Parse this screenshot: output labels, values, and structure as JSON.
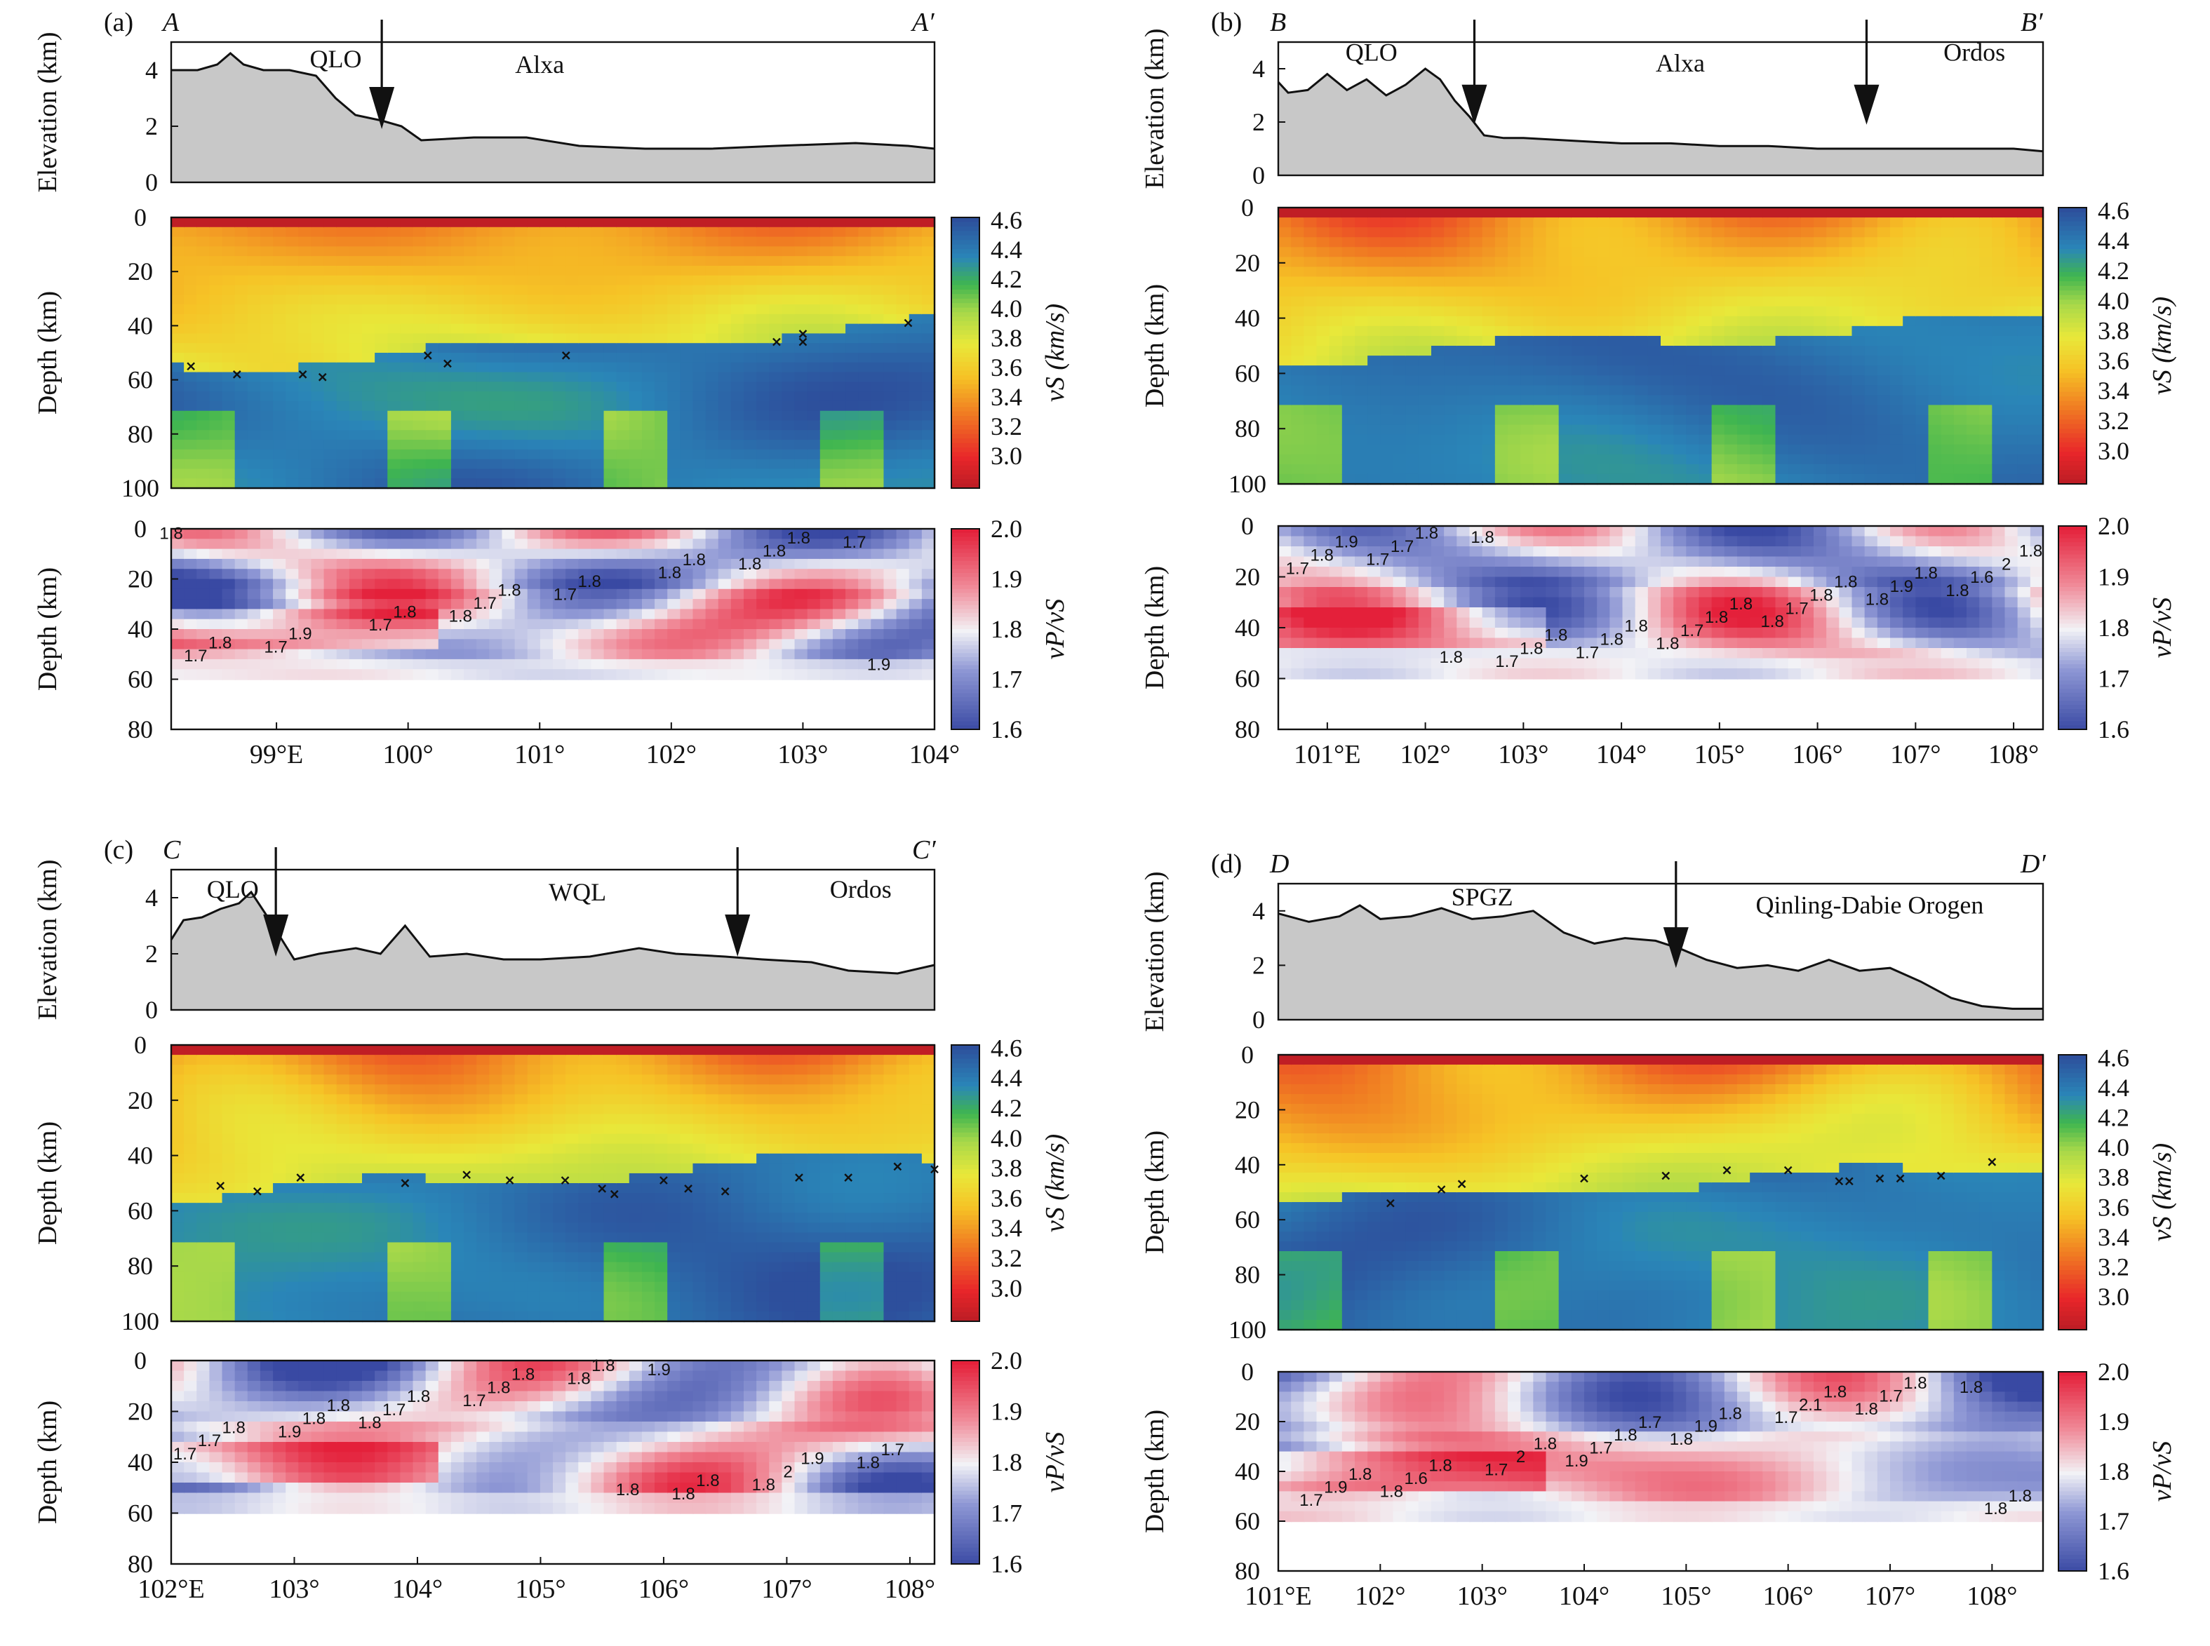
{
  "figure": {
    "panels": [
      {
        "tag": "(a)",
        "start": "A",
        "end": "A′",
        "elev_ylabel": "Elevation (km)",
        "depth_ylabel": "Depth (km)",
        "elev_ticks": [
          "0",
          "2",
          "4"
        ],
        "vs_ticks": [
          "0",
          "20",
          "40",
          "60",
          "80",
          "100"
        ],
        "vpvs_ticks": [
          "0",
          "20",
          "40",
          "60",
          "80"
        ],
        "x_ticks": [
          "99°E",
          "100°",
          "101°",
          "102°",
          "103°",
          "104°"
        ],
        "region_labels": [
          "QLO",
          "Alxa"
        ],
        "vs_cbar_label": "vS (km/s)",
        "vpvs_cbar_label": "vP/vS",
        "vs_cbar_ticks": [
          "4.6",
          "4.4",
          "4.2",
          "4.0",
          "3.8",
          "3.6",
          "3.4",
          "3.2",
          "3.0"
        ],
        "vpvs_cbar_ticks": [
          "2.0",
          "1.9",
          "1.8",
          "1.7",
          "1.6"
        ],
        "contour_labels": [
          "1.8",
          "1.8",
          "1.8",
          "1.7",
          "1.7",
          "1.7",
          "1.7",
          "1.8",
          "1.7",
          "1.7",
          "1.8",
          "1.9",
          "1.8",
          "1.9",
          "1.8",
          "1.8",
          "1.8",
          "1.8",
          "1.8"
        ]
      },
      {
        "tag": "(b)",
        "start": "B",
        "end": "B′",
        "elev_ylabel": "Elevation (km)",
        "depth_ylabel": "Depth (km)",
        "elev_ticks": [
          "0",
          "2",
          "4"
        ],
        "vs_ticks": [
          "0",
          "20",
          "40",
          "60",
          "80",
          "100"
        ],
        "vpvs_ticks": [
          "0",
          "20",
          "40",
          "60",
          "80"
        ],
        "x_ticks": [
          "101°E",
          "102°",
          "103°",
          "104°",
          "105°",
          "106°",
          "107°",
          "108°"
        ],
        "region_labels": [
          "QLO",
          "Alxa",
          "Ordos"
        ],
        "vs_cbar_label": "vS (km/s)",
        "vpvs_cbar_label": "vP/vS",
        "vs_cbar_ticks": [
          "4.6",
          "4.4",
          "4.2",
          "4.0",
          "3.8",
          "3.6",
          "3.4",
          "3.2",
          "3.0"
        ],
        "vpvs_cbar_ticks": [
          "2.0",
          "1.9",
          "1.8",
          "1.7",
          "1.6"
        ],
        "contour_labels": [
          "1.7",
          "1.8",
          "1.8",
          "1.8",
          "1.8",
          "1.7",
          "1.7",
          "1.8",
          "1.7",
          "1.7",
          "1.6",
          "1.7",
          "1.7",
          "1.8",
          "1.8",
          "1.9",
          "1.8",
          "1.8",
          "2",
          "1.8",
          "1.8",
          "1.9",
          "1.8",
          "1.8",
          "1.8",
          "1.8",
          "1.8",
          "1.8",
          "1.8"
        ]
      },
      {
        "tag": "(c)",
        "start": "C",
        "end": "C′",
        "elev_ylabel": "Elevation (km)",
        "depth_ylabel": "Depth (km)",
        "elev_ticks": [
          "0",
          "2",
          "4"
        ],
        "vs_ticks": [
          "0",
          "20",
          "40",
          "60",
          "80",
          "100"
        ],
        "vpvs_ticks": [
          "0",
          "20",
          "40",
          "60",
          "80"
        ],
        "x_ticks": [
          "102°E",
          "103°",
          "104°",
          "105°",
          "106°",
          "107°",
          "108°"
        ],
        "region_labels": [
          "QLO",
          "WQL",
          "Ordos"
        ],
        "vs_cbar_label": "vS (km/s)",
        "vpvs_cbar_label": "vP/vS",
        "vs_cbar_ticks": [
          "4.6",
          "4.4",
          "4.2",
          "4.0",
          "3.8",
          "3.6",
          "3.4",
          "3.2",
          "3.0"
        ],
        "vpvs_cbar_ticks": [
          "2.0",
          "1.9",
          "1.8",
          "1.7",
          "1.6"
        ],
        "contour_labels": [
          "1.8",
          "1.9",
          "1.7",
          "1.7",
          "1.8",
          "1.9",
          "1.8",
          "1.8",
          "1.7",
          "1.8",
          "1.7",
          "1.8",
          "2",
          "1.8",
          "1.8",
          "1.7",
          "1.8",
          "1.8",
          "1.8",
          "1.8",
          "1.9",
          "1.8",
          "1.8"
        ]
      },
      {
        "tag": "(d)",
        "start": "D",
        "end": "D′",
        "elev_ylabel": "Elevation (km)",
        "depth_ylabel": "Depth (km)",
        "elev_ticks": [
          "0",
          "2",
          "4"
        ],
        "vs_ticks": [
          "0",
          "20",
          "40",
          "60",
          "80",
          "100"
        ],
        "vpvs_ticks": [
          "0",
          "20",
          "40",
          "60",
          "80"
        ],
        "x_ticks": [
          "101°E",
          "102°",
          "103°",
          "104°",
          "105°",
          "106°",
          "107°",
          "108°"
        ],
        "region_labels": [
          "SPGZ",
          "Qinling-Dabie Orogen"
        ],
        "vs_cbar_label": "vS (km/s)",
        "vpvs_cbar_label": "vP/vS",
        "vs_cbar_ticks": [
          "4.6",
          "4.4",
          "4.2",
          "4.0",
          "3.8",
          "3.6",
          "3.4",
          "3.2",
          "3.0"
        ],
        "vpvs_cbar_ticks": [
          "2.0",
          "1.9",
          "1.8",
          "1.7",
          "1.6"
        ],
        "contour_labels": [
          "1.9",
          "1.8",
          "1.8",
          "1.8",
          "1.8",
          "1.7",
          "1.7",
          "1.7",
          "1.7",
          "1.7",
          "1.6",
          "1.9",
          "1.8",
          "2",
          "2.1",
          "1.9",
          "1.8",
          "1.8",
          "1.8",
          "1.8",
          "1.8",
          "1.8",
          "1.8",
          "1.8",
          "1.7"
        ]
      }
    ]
  },
  "chart_data": [
    {
      "panel": "(a)",
      "type": "area",
      "profile": "A-A′",
      "x_range_deg": [
        98.2,
        104.0
      ],
      "elevation": {
        "ylabel": "Elevation (km)",
        "ylim": [
          0,
          5
        ],
        "x": [
          98.2,
          98.4,
          98.55,
          98.65,
          98.75,
          98.9,
          99.1,
          99.3,
          99.45,
          99.6,
          99.8,
          99.95,
          100.1,
          100.5,
          100.9,
          101.3,
          101.8,
          102.3,
          102.8,
          103.4,
          103.8,
          104.0
        ],
        "y": [
          4.0,
          4.0,
          4.2,
          4.6,
          4.2,
          4.0,
          4.0,
          3.8,
          3.0,
          2.4,
          2.2,
          2.0,
          1.5,
          1.6,
          1.6,
          1.3,
          1.2,
          1.2,
          1.3,
          1.4,
          1.3,
          1.2
        ],
        "region_labels": [
          "QLO",
          "Alxa"
        ],
        "arrows_x": [
          99.8
        ]
      },
      "vs_section": {
        "type": "heatmap",
        "ylabel": "Depth (km)",
        "ylim": [
          0,
          100
        ],
        "colorbar_label": "vS (km/s)",
        "colorbar_range": [
          2.9,
          4.6
        ],
        "moho_x": [
          98.35,
          98.7,
          99.2,
          99.35,
          100.15,
          100.3,
          101.2,
          102.8,
          103.0,
          103.0,
          103.8
        ],
        "moho_depth": [
          55,
          58,
          58,
          59,
          51,
          54,
          51,
          46,
          43,
          46,
          39
        ]
      },
      "vpvs_section": {
        "type": "heatmap",
        "ylabel": "Depth (km)",
        "ylim": [
          0,
          80
        ],
        "colorbar_label": "vP/vS",
        "colorbar_range": [
          1.6,
          2.0
        ]
      }
    },
    {
      "panel": "(b)",
      "type": "area",
      "profile": "B-B′",
      "x_range_deg": [
        100.5,
        108.3
      ],
      "elevation": {
        "ylabel": "Elevation (km)",
        "ylim": [
          0,
          5
        ],
        "x": [
          100.5,
          100.6,
          100.8,
          101.0,
          101.2,
          101.4,
          101.6,
          101.8,
          102.0,
          102.15,
          102.3,
          102.45,
          102.6,
          102.8,
          103.0,
          103.5,
          104.0,
          104.5,
          105.0,
          105.5,
          106.0,
          106.5,
          107.0,
          107.5,
          108.0,
          108.3
        ],
        "y": [
          3.5,
          3.1,
          3.2,
          3.8,
          3.2,
          3.6,
          3.0,
          3.4,
          4.0,
          3.6,
          2.8,
          2.2,
          1.5,
          1.4,
          1.4,
          1.3,
          1.2,
          1.2,
          1.1,
          1.1,
          1.0,
          1.0,
          1.0,
          1.0,
          1.0,
          0.9
        ],
        "region_labels": [
          "QLO",
          "Alxa",
          "Ordos"
        ],
        "arrows_x": [
          102.5,
          106.5
        ]
      },
      "vs_section": {
        "type": "heatmap",
        "ylabel": "Depth (km)",
        "ylim": [
          0,
          100
        ],
        "colorbar_label": "vS (km/s)",
        "colorbar_range": [
          2.9,
          4.6
        ]
      },
      "vpvs_section": {
        "type": "heatmap",
        "ylabel": "Depth (km)",
        "ylim": [
          0,
          80
        ],
        "colorbar_label": "vP/vS",
        "colorbar_range": [
          1.6,
          2.0
        ]
      }
    },
    {
      "panel": "(c)",
      "type": "area",
      "profile": "C-C′",
      "x_range_deg": [
        102.0,
        108.2
      ],
      "elevation": {
        "ylabel": "Elevation (km)",
        "ylim": [
          0,
          5
        ],
        "x": [
          102.0,
          102.1,
          102.25,
          102.4,
          102.55,
          102.65,
          102.8,
          103.0,
          103.2,
          103.5,
          103.7,
          103.9,
          104.1,
          104.4,
          104.7,
          105.0,
          105.4,
          105.8,
          106.1,
          106.5,
          106.8,
          107.2,
          107.5,
          107.9,
          108.2
        ],
        "y": [
          2.5,
          3.2,
          3.3,
          3.6,
          3.8,
          4.2,
          3.2,
          1.8,
          2.0,
          2.2,
          2.0,
          3.0,
          1.9,
          2.0,
          1.8,
          1.8,
          1.9,
          2.2,
          2.0,
          1.9,
          1.8,
          1.7,
          1.4,
          1.3,
          1.6
        ],
        "region_labels": [
          "QLO",
          "WQL",
          "Ordos"
        ],
        "arrows_x": [
          102.85,
          106.6
        ]
      },
      "vs_section": {
        "type": "heatmap",
        "ylabel": "Depth (km)",
        "ylim": [
          0,
          100
        ],
        "colorbar_label": "vS (km/s)",
        "colorbar_range": [
          2.9,
          4.6
        ],
        "moho_x": [
          102.4,
          102.7,
          103.05,
          103.9,
          104.4,
          104.75,
          105.2,
          105.5,
          105.6,
          106.0,
          106.2,
          106.5,
          107.1,
          107.5,
          107.9,
          108.2
        ],
        "moho_depth": [
          51,
          53,
          48,
          50,
          47,
          49,
          49,
          52,
          54,
          49,
          52,
          53,
          48,
          48,
          44,
          45
        ]
      },
      "vpvs_section": {
        "type": "heatmap",
        "ylabel": "Depth (km)",
        "ylim": [
          0,
          80
        ],
        "colorbar_label": "vP/vS",
        "colorbar_range": [
          1.6,
          2.0
        ]
      }
    },
    {
      "panel": "(d)",
      "type": "area",
      "profile": "D-D′",
      "x_range_deg": [
        101.0,
        108.5
      ],
      "elevation": {
        "ylabel": "Elevation (km)",
        "ylim": [
          0,
          5
        ],
        "x": [
          101.0,
          101.3,
          101.6,
          101.8,
          102.0,
          102.3,
          102.6,
          102.9,
          103.2,
          103.5,
          103.8,
          104.1,
          104.4,
          104.7,
          104.95,
          105.2,
          105.5,
          105.8,
          106.1,
          106.4,
          106.7,
          107.0,
          107.3,
          107.6,
          107.9,
          108.2,
          108.5
        ],
        "y": [
          3.9,
          3.6,
          3.8,
          4.2,
          3.7,
          3.8,
          4.1,
          3.7,
          3.8,
          4.0,
          3.2,
          2.8,
          3.0,
          2.9,
          2.6,
          2.2,
          1.9,
          2.0,
          1.8,
          2.2,
          1.8,
          1.9,
          1.4,
          0.8,
          0.5,
          0.4,
          0.4
        ],
        "region_labels": [
          "SPGZ",
          "Qinling-Dabie Orogen"
        ],
        "arrows_x": [
          104.9
        ]
      },
      "vs_section": {
        "type": "heatmap",
        "ylabel": "Depth (km)",
        "ylim": [
          0,
          100
        ],
        "colorbar_label": "vS (km/s)",
        "colorbar_range": [
          2.9,
          4.6
        ],
        "moho_x": [
          102.1,
          102.6,
          102.8,
          104.0,
          104.8,
          105.4,
          106.0,
          106.5,
          106.6,
          106.9,
          107.1,
          107.5,
          108.0
        ],
        "moho_depth": [
          54,
          49,
          47,
          45,
          44,
          42,
          42,
          46,
          46,
          45,
          45,
          44,
          39
        ]
      },
      "vpvs_section": {
        "type": "heatmap",
        "ylabel": "Depth (km)",
        "ylim": [
          0,
          80
        ],
        "colorbar_label": "vP/vS",
        "colorbar_range": [
          1.6,
          2.0
        ]
      }
    }
  ]
}
